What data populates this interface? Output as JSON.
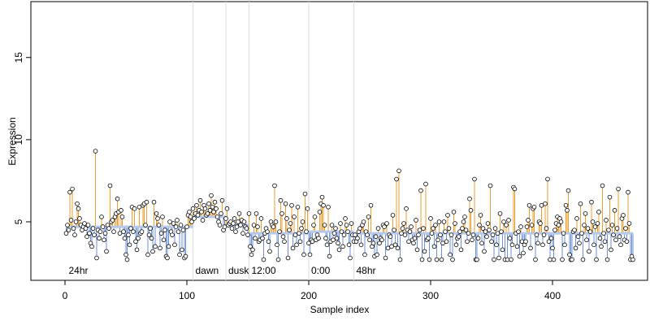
{
  "chart_data": {
    "type": "stem-scatter",
    "xlabel": "Sample index",
    "ylabel": "Expression",
    "xlim": [
      -28,
      478
    ],
    "ylim": [
      1.44,
      18.4
    ],
    "xticks": [
      0,
      100,
      200,
      300,
      400
    ],
    "yticks": [
      5,
      10,
      15
    ],
    "above_color": "#e8a030",
    "below_color": "#6f93d6",
    "point_color": "#000000",
    "phases": [
      {
        "label": "24hr",
        "start": 1,
        "baseline": 4.7
      },
      {
        "label": "dawn",
        "start": 105,
        "baseline": 5.3
      },
      {
        "label": "dusk",
        "start": 132,
        "baseline": 4.8
      },
      {
        "label": "12:00",
        "start": 151,
        "baseline": 4.3
      },
      {
        "label": "0:00",
        "start": 200,
        "baseline": 4.4
      },
      {
        "label": "48hr",
        "start": 237,
        "baseline": 4.3
      }
    ],
    "values": [
      4.3,
      4.8,
      4.5,
      6.8,
      5.1,
      7.0,
      4.6,
      4.2,
      5.0,
      6.1,
      5.8,
      5.2,
      4.8,
      4.5,
      4.7,
      4.9,
      4.6,
      4.1,
      4.8,
      4.3,
      3.7,
      3.5,
      4.6,
      4.2,
      9.3,
      2.8,
      4.5,
      4.0,
      4.4,
      5.3,
      4.7,
      3.9,
      4.3,
      3.2,
      4.8,
      4.6,
      7.2,
      5.0,
      5.1,
      4.4,
      5.3,
      5.5,
      6.4,
      5.6,
      4.3,
      5.7,
      5.3,
      4.4,
      4.0,
      3.0,
      2.7,
      4.2,
      3.6,
      4.6,
      5.9,
      4.4,
      5.8,
      3.8,
      3.3,
      4.0,
      5.9,
      4.3,
      4.4,
      6.0,
      6.1,
      4.8,
      6.2,
      3.0,
      4.2,
      4.6,
      4.0,
      3.2,
      6.2,
      3.5,
      5.5,
      5.2,
      4.8,
      3.4,
      4.3,
      5.3,
      3.9,
      4.5,
      2.9,
      2.8,
      3.5,
      5.0,
      4.4,
      4.2,
      4.9,
      3.6,
      4.7,
      5.1,
      4.4,
      3.0,
      4.8,
      3.3,
      4.5,
      2.8,
      2.9,
      4.7,
      5.4,
      5.6,
      5.3,
      5.0,
      5.8,
      5.2,
      5.5,
      6.0,
      5.4,
      5.7,
      6.3,
      5.6,
      5.1,
      6.0,
      5.8,
      5.4,
      5.5,
      6.1,
      5.7,
      6.6,
      5.9,
      5.6,
      6.2,
      5.8,
      5.3,
      5.0,
      4.8,
      5.5,
      6.3,
      4.5,
      4.7,
      5.2,
      5.8,
      4.8,
      4.9,
      5.0,
      4.6,
      4.9,
      5.2,
      4.4,
      4.7,
      5.0,
      5.5,
      4.8,
      5.1,
      4.3,
      5.0,
      4.7,
      4.6,
      4.2,
      5.5,
      3.5,
      3.0,
      3.3,
      4.8,
      4.0,
      5.5,
      4.7,
      3.8,
      3.9,
      5.2,
      4.0,
      2.7,
      4.3,
      4.6,
      4.4,
      3.8,
      3.2,
      5.0,
      4.8,
      4.7,
      7.2,
      5.0,
      3.6,
      2.7,
      4.4,
      6.3,
      5.5,
      4.1,
      3.8,
      6.1,
      5.2,
      2.8,
      4.5,
      4.9,
      6.0,
      3.4,
      5.3,
      4.2,
      3.6,
      5.9,
      4.3,
      3.8,
      4.6,
      5.0,
      3.0,
      6.7,
      4.4,
      5.8,
      3.7,
      3.0,
      3.9,
      3.8,
      4.8,
      5.3,
      3.9,
      4.2,
      4.0,
      5.6,
      6.1,
      6.5,
      6.0,
      4.8,
      4.0,
      3.6,
      5.9,
      2.9,
      3.8,
      4.8,
      3.9,
      4.3,
      4.6,
      4.0,
      3.7,
      3.3,
      4.9,
      4.4,
      3.5,
      4.2,
      5.2,
      4.8,
      4.4,
      3.6,
      2.8,
      4.9,
      4.2,
      3.8,
      4.2,
      3.8,
      4.0,
      4.4,
      4.6,
      3.6,
      4.8,
      5.0,
      3.0,
      4.4,
      4.2,
      5.3,
      3.9,
      6.0,
      3.5,
      3.7,
      2.9,
      4.1,
      3.0,
      4.6,
      3.7,
      4.0,
      3.9,
      4.8,
      4.7,
      2.8,
      4.9,
      3.4,
      4.2,
      4.1,
      3.5,
      5.4,
      4.5,
      3.6,
      7.6,
      3.4,
      8.1,
      2.7,
      4.3,
      4.6,
      4.9,
      4.2,
      5.8,
      4.5,
      3.8,
      4.4,
      4.7,
      3.9,
      3.7,
      4.0,
      5.1,
      3.3,
      4.2,
      4.5,
      6.9,
      2.7,
      4.6,
      3.2,
      7.3,
      3.9,
      4.0,
      2.7,
      5.2,
      4.3,
      4.6,
      3.5,
      4.8,
      2.7,
      3.9,
      5.0,
      4.2,
      2.7,
      3.7,
      5.0,
      4.4,
      3.8,
      5.4,
      4.6,
      3.0,
      4.2,
      2.7,
      5.6,
      4.9,
      3.6,
      4.0,
      4.1,
      4.4,
      3.3,
      4.6,
      5.0,
      5.3,
      4.5,
      3.8,
      4.3,
      6.4,
      5.7,
      3.9,
      4.2,
      7.6,
      2.7,
      2.7,
      4.0,
      4.8,
      5.4,
      3.7,
      4.6,
      3.2,
      4.4,
      4.1,
      4.9,
      4.5,
      7.2,
      3.8,
      4.2,
      2.7,
      4.6,
      3.6,
      4.3,
      2.8,
      5.5,
      4.4,
      3.3,
      5.0,
      2.7,
      4.8,
      2.7,
      5.1,
      4.0,
      2.7,
      3.6,
      7.1,
      7.0,
      4.3,
      3.5,
      4.4,
      2.9,
      4.7,
      3.8,
      3.1,
      3.6,
      3.8,
      4.7,
      5.1,
      6.0,
      3.4,
      4.8,
      5.8,
      5.9,
      2.7,
      4.2,
      3.7,
      5.0,
      4.9,
      6.0,
      3.6,
      4.2,
      6.1,
      4.6,
      7.6,
      3.8,
      2.7,
      4.0,
      3.4,
      2.7,
      4.5,
      4.9,
      5.3,
      4.8,
      5.2,
      5.0,
      2.7,
      4.3,
      3.6,
      6.0,
      5.7,
      6.9,
      3.0,
      2.7,
      2.7,
      4.4,
      4.5,
      3.4,
      5.2,
      4.1,
      3.7,
      6.1,
      4.3,
      2.7,
      4.8,
      5.5,
      3.9,
      4.6,
      3.2,
      4.4,
      6.2,
      5.0,
      3.6,
      4.7,
      2.7,
      4.9,
      5.6,
      4.0,
      3.5,
      7.2,
      4.3,
      3.8,
      5.1,
      2.7,
      4.5,
      6.5,
      3.3,
      4.8,
      4.2,
      5.7,
      3.9,
      4.6,
      7.0,
      4.1,
      3.6,
      5.2,
      5.4,
      3.9,
      4.6,
      3.8,
      6.8,
      4.9,
      2.7,
      2.9,
      2.7
    ]
  }
}
